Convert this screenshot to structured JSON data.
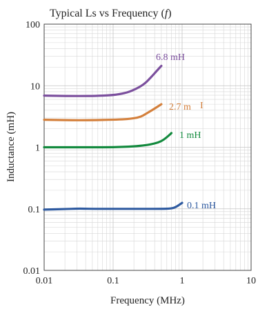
{
  "chart_data": {
    "type": "line",
    "title_main": "Typical Ls vs Frequency (",
    "title_var": "f",
    "title_close": ")",
    "xlabel": "Frequency (MHz)",
    "ylabel": "Inductance (mH)",
    "xscale": "log",
    "yscale": "log",
    "xlim": [
      0.01,
      10
    ],
    "ylim": [
      0.01,
      100
    ],
    "xticks": [
      {
        "value": 0.01,
        "label": "0.01"
      },
      {
        "value": 0.1,
        "label": "0.1"
      },
      {
        "value": 1,
        "label": "1"
      },
      {
        "value": 10,
        "label": "10"
      }
    ],
    "yticks": [
      {
        "value": 0.01,
        "label": "0.01"
      },
      {
        "value": 0.1,
        "label": "0.1"
      },
      {
        "value": 1,
        "label": "1"
      },
      {
        "value": 10,
        "label": "10"
      },
      {
        "value": 100,
        "label": "100"
      }
    ],
    "grid": true,
    "series": [
      {
        "name": "6.8 mH",
        "label": "6.8 mH",
        "color": "#7b4f9d",
        "x": [
          0.01,
          0.02,
          0.05,
          0.1,
          0.15,
          0.2,
          0.28,
          0.35,
          0.42,
          0.5
        ],
        "y": [
          6.9,
          6.8,
          6.8,
          7.0,
          7.6,
          8.5,
          10.5,
          13.5,
          17.0,
          21.0
        ]
      },
      {
        "name": "2.7 mH",
        "label": "2.7 m",
        "color": "#d4803c",
        "x": [
          0.01,
          0.02,
          0.05,
          0.1,
          0.15,
          0.2,
          0.25,
          0.3,
          0.38,
          0.5
        ],
        "y": [
          2.8,
          2.75,
          2.75,
          2.8,
          2.85,
          2.95,
          3.1,
          3.5,
          4.1,
          5.0
        ]
      },
      {
        "name": "1 mH",
        "label": "1 mH",
        "color": "#138a3e",
        "x": [
          0.01,
          0.05,
          0.1,
          0.2,
          0.3,
          0.4,
          0.5,
          0.6,
          0.7
        ],
        "y": [
          1.0,
          1.0,
          1.0,
          1.03,
          1.08,
          1.15,
          1.25,
          1.45,
          1.7
        ]
      },
      {
        "name": "0.1 mH",
        "label": "0.1 mH",
        "color": "#2e5aa0",
        "x": [
          0.01,
          0.02,
          0.03,
          0.05,
          0.1,
          0.2,
          0.5,
          0.7,
          0.8,
          0.9,
          1.0
        ],
        "y": [
          0.097,
          0.099,
          0.101,
          0.1,
          0.1,
          0.1,
          0.1,
          0.101,
          0.106,
          0.115,
          0.125
        ]
      }
    ],
    "annotation": {
      "text": "I",
      "color": "#d4803c"
    }
  }
}
